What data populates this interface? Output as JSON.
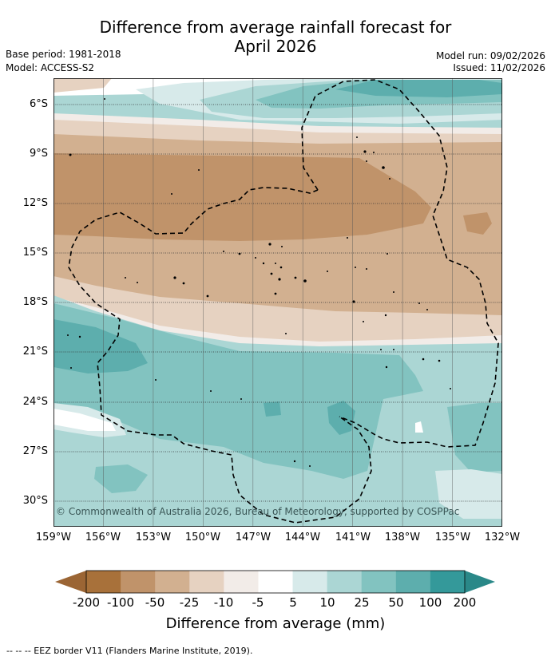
{
  "header": {
    "title_line1": "Difference from average rainfall forecast for",
    "title_line2": "April 2026",
    "base_period": "Base period: 1981-2018",
    "model": "Model: ACCESS-S2",
    "model_run": "Model run: 09/02/2026",
    "issued": "Issued: 11/02/2026"
  },
  "map": {
    "lon_ticks": [
      "159°W",
      "156°W",
      "153°W",
      "150°W",
      "147°W",
      "144°W",
      "141°W",
      "138°W",
      "135°W",
      "132°W"
    ],
    "lat_ticks": [
      "6°S",
      "9°S",
      "12°S",
      "15°S",
      "18°S",
      "21°S",
      "24°S",
      "27°S",
      "30°S"
    ],
    "copyright": "© Commonwealth of Australia 2026, Bureau of Meteorology, supported by COSPPac"
  },
  "colorbar": {
    "labels": [
      "-200",
      "-100",
      "-50",
      "-25",
      "-10",
      "-5",
      "5",
      "10",
      "25",
      "50",
      "100",
      "200"
    ],
    "colors": [
      "#a8713a",
      "#c0936a",
      "#d2b090",
      "#e6d2c1",
      "#f2ece8",
      "#ffffff",
      "#d7eaea",
      "#abd6d4",
      "#82c3c0",
      "#5daead",
      "#34999a"
    ],
    "low_arrow_color": "#9b6534",
    "high_arrow_color": "#2a8888",
    "title": "Difference from average (mm)"
  },
  "legend": {
    "footnote": "--  --  -- EEZ border V11 (Flanders Marine Institute, 2019)."
  }
}
